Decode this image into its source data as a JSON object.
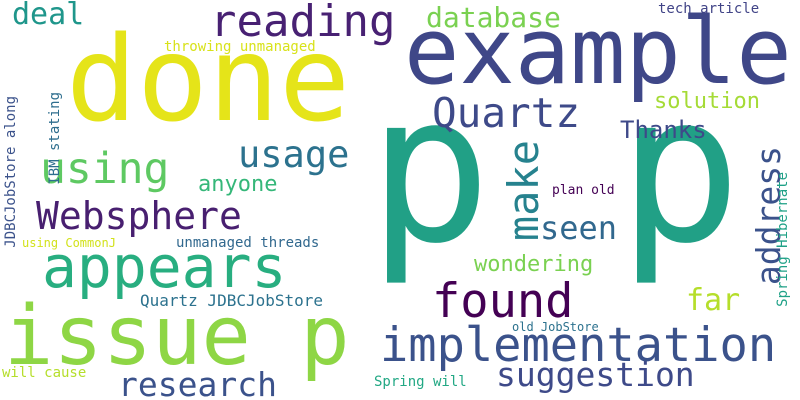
{
  "words": [
    {
      "text": "p",
      "color": "#21a086",
      "size": 205,
      "angle": 0
    },
    {
      "text": "p",
      "color": "#21a086",
      "size": 205,
      "angle": 0
    },
    {
      "text": "done",
      "color": "#e5e419",
      "size": 118,
      "angle": 0
    },
    {
      "text": "example",
      "color": "#3f4788",
      "size": 92,
      "angle": 0
    },
    {
      "text": "issue p",
      "color": "#8ed645",
      "size": 82,
      "angle": 0
    },
    {
      "text": "appears",
      "color": "#28ae80",
      "size": 58,
      "angle": 0
    },
    {
      "text": "implementation",
      "color": "#3b528b",
      "size": 47,
      "angle": 0
    },
    {
      "text": "found",
      "color": "#440154",
      "size": 47,
      "angle": 0
    },
    {
      "text": "reading",
      "color": "#482173",
      "size": 44,
      "angle": 0
    },
    {
      "text": "Websphere",
      "color": "#481f70",
      "size": 38,
      "angle": 0
    },
    {
      "text": "using",
      "color": "#5ec962",
      "size": 43,
      "angle": 0
    },
    {
      "text": "usage",
      "color": "#2c728e",
      "size": 37,
      "angle": 0
    },
    {
      "text": "Quartz",
      "color": "#3e4a89",
      "size": 41,
      "angle": 0
    },
    {
      "text": "suggestion",
      "color": "#3e4a89",
      "size": 33,
      "angle": 0
    },
    {
      "text": "research",
      "color": "#3b528b",
      "size": 33,
      "angle": 0
    },
    {
      "text": "make",
      "color": "#26828e",
      "size": 42,
      "angle": -90
    },
    {
      "text": "seen",
      "color": "#31688e",
      "size": 32,
      "angle": 0
    },
    {
      "text": "address",
      "color": "#3b528b",
      "size": 33,
      "angle": -90
    },
    {
      "text": "database",
      "color": "#7ad151",
      "size": 28,
      "angle": 0
    },
    {
      "text": "deal",
      "color": "#1f968b",
      "size": 30,
      "angle": 0
    },
    {
      "text": "far",
      "color": "#b5de2b",
      "size": 30,
      "angle": 0
    },
    {
      "text": "solution",
      "color": "#a5db36",
      "size": 22,
      "angle": 0
    },
    {
      "text": "Thanks",
      "color": "#3e4989",
      "size": 24,
      "angle": 0
    },
    {
      "text": "anyone",
      "color": "#35b779",
      "size": 22,
      "angle": 0
    },
    {
      "text": "wondering",
      "color": "#7ad151",
      "size": 22,
      "angle": 0
    },
    {
      "text": "Quartz JDBCJobStore",
      "color": "#2c728e",
      "size": 16,
      "angle": 0
    },
    {
      "text": "tech article",
      "color": "#414487",
      "size": 14,
      "angle": 0
    },
    {
      "text": "throwing unmanaged",
      "color": "#d8e219",
      "size": 14,
      "angle": 0
    },
    {
      "text": "IBM stating",
      "color": "#2e6e8e",
      "size": 14,
      "angle": -90
    },
    {
      "text": "JDBCJobStore along",
      "color": "#3b528b",
      "size": 14,
      "angle": -90
    },
    {
      "text": "unmanaged threads",
      "color": "#31688e",
      "size": 14,
      "angle": 0
    },
    {
      "text": "using CommonJ",
      "color": "#d2e21b",
      "size": 12,
      "angle": 0
    },
    {
      "text": "plan old",
      "color": "#440154",
      "size": 13,
      "angle": 0
    },
    {
      "text": "Spring Hibernate",
      "color": "#1fa187",
      "size": 14,
      "angle": -90
    },
    {
      "text": "old JobStore",
      "color": "#2c728e",
      "size": 12,
      "angle": 0
    },
    {
      "text": "will cause",
      "color": "#b5de2b",
      "size": 14,
      "angle": 0
    },
    {
      "text": "Spring will",
      "color": "#22a884",
      "size": 14,
      "angle": 0
    }
  ]
}
